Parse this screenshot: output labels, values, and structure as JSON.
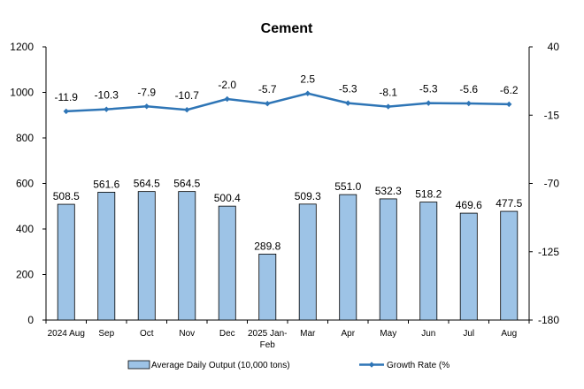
{
  "chart_data": {
    "type": "bar",
    "title": "Cement",
    "categories": [
      "2024 Aug",
      "Sep",
      "Oct",
      "Nov",
      "Dec",
      "2025 Jan-Feb",
      "Mar",
      "Apr",
      "May",
      "Jun",
      "Jul",
      "Aug"
    ],
    "category_lines": [
      [
        "2024 Aug"
      ],
      [
        "Sep"
      ],
      [
        "Oct"
      ],
      [
        "Nov"
      ],
      [
        "Dec"
      ],
      [
        "2025 Jan-",
        "Feb"
      ],
      [
        "Mar"
      ],
      [
        "Apr"
      ],
      [
        "May"
      ],
      [
        "Jun"
      ],
      [
        "Jul"
      ],
      [
        "Aug"
      ]
    ],
    "series": [
      {
        "name": "Average Daily Output (10,000 tons)",
        "type": "bar",
        "axis": "left",
        "color": "#9dc3e6",
        "values": [
          508.5,
          561.6,
          564.5,
          564.5,
          500.4,
          289.8,
          509.3,
          551.0,
          532.3,
          518.2,
          469.6,
          477.5
        ],
        "labels": [
          "508.5",
          "561.6",
          "564.5",
          "564.5",
          "500.4",
          "289.8",
          "509.3",
          "551.0",
          "532.3",
          "518.2",
          "469.6",
          "477.5"
        ]
      },
      {
        "name": "Growth Rate (%)",
        "legend_text": "Growth Rate (%",
        "type": "line",
        "axis": "right",
        "color": "#2e75b6",
        "values": [
          -11.9,
          -10.3,
          -7.9,
          -10.7,
          -2.0,
          -5.7,
          2.5,
          -5.3,
          -8.1,
          -5.3,
          -5.6,
          -6.2
        ],
        "labels": [
          "-11.9",
          "-10.3",
          "-7.9",
          "-10.7",
          "-2.0",
          "-5.7",
          "2.5",
          "-5.3",
          "-8.1",
          "-5.3",
          "-5.6",
          "-6.2"
        ]
      }
    ],
    "y_left": {
      "min": 0,
      "max": 1200,
      "ticks": [
        "0",
        "200",
        "400",
        "600",
        "800",
        "1000",
        "1200"
      ]
    },
    "y_right": {
      "min": -180,
      "max": 40,
      "ticks": [
        "-180",
        "-125",
        "-70",
        "-15",
        "40"
      ]
    },
    "grid": false,
    "legend_position": "bottom"
  }
}
